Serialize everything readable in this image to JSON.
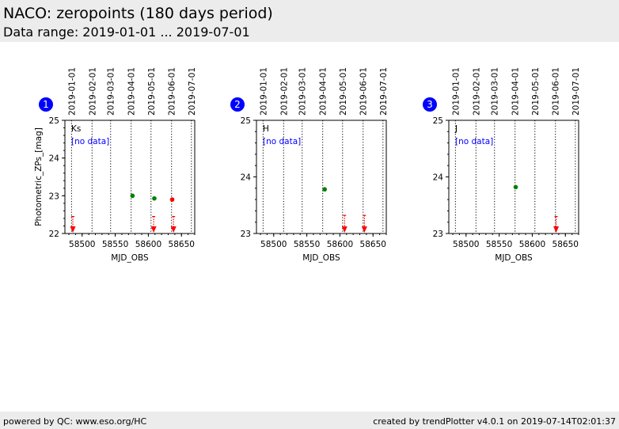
{
  "header": {
    "title": "NACO: zeropoints (180 days period)",
    "subtitle": "Data range: 2019-01-01 ... 2019-07-01"
  },
  "footer": {
    "left": "powered by QC: www.eso.org/HC",
    "right": "created by trendPlotter v4.0.1 on 2019-07-14T02:01:37"
  },
  "colors": {
    "header_bg": "#ececec",
    "badge": "#0000ff",
    "no_data": "#0000ff",
    "ok_point": "#008000",
    "outlier": "#ff0000"
  },
  "chart_data": [
    {
      "type": "scatter",
      "panel_number": "1",
      "band_label": "Ks",
      "annotation": "[no data]",
      "xlabel": "MJD_OBS",
      "ylabel": "Photometric_ZPs_[mag]",
      "xlim": [
        58474,
        58670
      ],
      "ylim": [
        22,
        25
      ],
      "x_ticks": [
        58500,
        58550,
        58600,
        58650
      ],
      "y_ticks": [
        22,
        23,
        24,
        25
      ],
      "date_markers": [
        {
          "label": "2019-01-01",
          "mjd": 58484
        },
        {
          "label": "2019-02-01",
          "mjd": 58515
        },
        {
          "label": "2019-03-01",
          "mjd": 58543
        },
        {
          "label": "2019-04-01",
          "mjd": 58574
        },
        {
          "label": "2019-05-01",
          "mjd": 58604
        },
        {
          "label": "2019-06-01",
          "mjd": 58635
        },
        {
          "label": "2019-07-01",
          "mjd": 58665
        }
      ],
      "points": [
        {
          "x": 58576,
          "y": 23.0,
          "color": "#008000"
        },
        {
          "x": 58609,
          "y": 22.93,
          "color": "#008000"
        },
        {
          "x": 58636,
          "y": 22.9,
          "color": "#ff0000"
        }
      ],
      "limits": [
        {
          "x": 58486,
          "y": 22.45
        },
        {
          "x": 58608,
          "y": 22.45
        },
        {
          "x": 58638,
          "y": 22.45
        }
      ]
    },
    {
      "type": "scatter",
      "panel_number": "2",
      "band_label": "H",
      "annotation": "[no data]",
      "xlabel": "MJD_OBS",
      "ylabel": "",
      "xlim": [
        58474,
        58670
      ],
      "ylim": [
        23,
        25
      ],
      "x_ticks": [
        58500,
        58550,
        58600,
        58650
      ],
      "y_ticks": [
        23,
        24,
        25
      ],
      "date_markers": [
        {
          "label": "2019-01-01",
          "mjd": 58484
        },
        {
          "label": "2019-02-01",
          "mjd": 58515
        },
        {
          "label": "2019-03-01",
          "mjd": 58543
        },
        {
          "label": "2019-04-01",
          "mjd": 58574
        },
        {
          "label": "2019-05-01",
          "mjd": 58604
        },
        {
          "label": "2019-06-01",
          "mjd": 58635
        },
        {
          "label": "2019-07-01",
          "mjd": 58665
        }
      ],
      "points": [
        {
          "x": 58577,
          "y": 23.78,
          "color": "#008000"
        }
      ],
      "limits": [
        {
          "x": 58607,
          "y": 23.32
        },
        {
          "x": 58637,
          "y": 23.32
        }
      ]
    },
    {
      "type": "scatter",
      "panel_number": "3",
      "band_label": "J",
      "annotation": "[no data]",
      "xlabel": "MJD_OBS",
      "ylabel": "",
      "xlim": [
        58474,
        58670
      ],
      "ylim": [
        23,
        25
      ],
      "x_ticks": [
        58500,
        58550,
        58600,
        58650
      ],
      "y_ticks": [
        23,
        24,
        25
      ],
      "date_markers": [
        {
          "label": "2019-01-01",
          "mjd": 58484
        },
        {
          "label": "2019-02-01",
          "mjd": 58515
        },
        {
          "label": "2019-03-01",
          "mjd": 58543
        },
        {
          "label": "2019-04-01",
          "mjd": 58574
        },
        {
          "label": "2019-05-01",
          "mjd": 58604
        },
        {
          "label": "2019-06-01",
          "mjd": 58635
        },
        {
          "label": "2019-07-01",
          "mjd": 58665
        }
      ],
      "points": [
        {
          "x": 58575,
          "y": 23.82,
          "color": "#008000"
        }
      ],
      "limits": [
        {
          "x": 58636,
          "y": 23.3
        }
      ]
    }
  ]
}
